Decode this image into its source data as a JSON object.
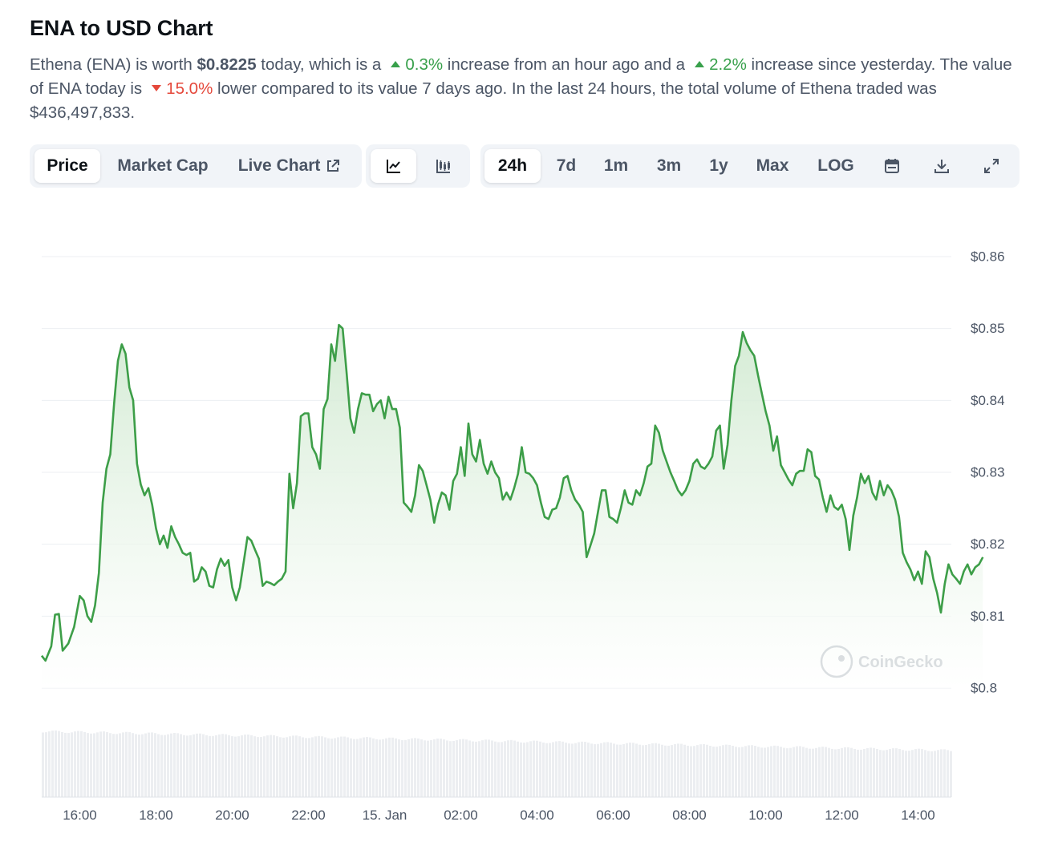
{
  "title": "ENA to USD Chart",
  "description": {
    "part1": "Ethena (ENA) is worth ",
    "price": "$0.8225",
    "part2": " today, which is a",
    "hour_change": "0.3%",
    "part3": " increase from an hour ago and a",
    "day_change": "2.2%",
    "part4": " increase since yesterday. The value of ENA today is",
    "week_change": "15.0%",
    "part5": " lower compared to its value 7 days ago. In the last 24 hours, the total volume of Ethena traded was $436,497,833."
  },
  "toolbar": {
    "tabs": [
      "Price",
      "Market Cap",
      "Live Chart"
    ],
    "active_tab": "Price",
    "chart_types": [
      "line-chart-icon",
      "candlestick-icon"
    ],
    "ranges": [
      "24h",
      "7d",
      "1m",
      "3m",
      "1y",
      "Max",
      "LOG"
    ],
    "active_range": "24h",
    "tools": [
      "calendar-icon",
      "download-icon",
      "fullscreen-icon"
    ]
  },
  "watermark": "CoinGecko",
  "colors": {
    "line": "#3d9e48",
    "fill": "#d9efd9",
    "up": "#38a04b",
    "down": "#e5483b",
    "grid": "#eceff3",
    "axis_text": "#4b5565"
  },
  "chart_data": {
    "type": "line",
    "title": "ENA to USD Chart",
    "xlabel": "",
    "ylabel": "",
    "ylim": [
      0.8,
      0.86
    ],
    "xlim": [
      15.0,
      39.9
    ],
    "grid": true,
    "legend": "none",
    "x_ticks": [
      {
        "x": 16,
        "label": "16:00"
      },
      {
        "x": 18,
        "label": "18:00"
      },
      {
        "x": 20,
        "label": "20:00"
      },
      {
        "x": 22,
        "label": "22:00"
      },
      {
        "x": 24,
        "label": "15. Jan"
      },
      {
        "x": 26,
        "label": "02:00"
      },
      {
        "x": 28,
        "label": "04:00"
      },
      {
        "x": 30,
        "label": "06:00"
      },
      {
        "x": 32,
        "label": "08:00"
      },
      {
        "x": 34,
        "label": "10:00"
      },
      {
        "x": 36,
        "label": "12:00"
      },
      {
        "x": 38,
        "label": "14:00"
      }
    ],
    "y_ticks": [
      {
        "y": 0.86,
        "label": "$0.86"
      },
      {
        "y": 0.85,
        "label": "$0.85"
      },
      {
        "y": 0.84,
        "label": "$0.84"
      },
      {
        "y": 0.83,
        "label": "$0.83"
      },
      {
        "y": 0.82,
        "label": "$0.82"
      },
      {
        "y": 0.81,
        "label": "$0.81"
      },
      {
        "y": 0.8,
        "label": "$0.8"
      }
    ],
    "series": [
      {
        "name": "Price",
        "points": [
          [
            15.0,
            0.8045
          ],
          [
            15.1,
            0.8038
          ],
          [
            15.25,
            0.8058
          ],
          [
            15.35,
            0.8102
          ],
          [
            15.45,
            0.8103
          ],
          [
            15.55,
            0.8052
          ],
          [
            15.7,
            0.8062
          ],
          [
            15.85,
            0.8085
          ],
          [
            16.0,
            0.8128
          ],
          [
            16.1,
            0.8122
          ],
          [
            16.2,
            0.81
          ],
          [
            16.3,
            0.8092
          ],
          [
            16.4,
            0.8115
          ],
          [
            16.5,
            0.816
          ],
          [
            16.6,
            0.8258
          ],
          [
            16.7,
            0.8305
          ],
          [
            16.8,
            0.8325
          ],
          [
            16.9,
            0.8395
          ],
          [
            17.0,
            0.8455
          ],
          [
            17.1,
            0.8478
          ],
          [
            17.2,
            0.8465
          ],
          [
            17.3,
            0.8418
          ],
          [
            17.4,
            0.84
          ],
          [
            17.5,
            0.8312
          ],
          [
            17.6,
            0.8283
          ],
          [
            17.7,
            0.8268
          ],
          [
            17.8,
            0.8278
          ],
          [
            17.9,
            0.8255
          ],
          [
            18.0,
            0.8222
          ],
          [
            18.1,
            0.82
          ],
          [
            18.2,
            0.8212
          ],
          [
            18.3,
            0.8195
          ],
          [
            18.4,
            0.8225
          ],
          [
            18.5,
            0.821
          ],
          [
            18.6,
            0.82
          ],
          [
            18.7,
            0.8188
          ],
          [
            18.8,
            0.8185
          ],
          [
            18.9,
            0.8188
          ],
          [
            19.0,
            0.8148
          ],
          [
            19.1,
            0.8152
          ],
          [
            19.2,
            0.8168
          ],
          [
            19.3,
            0.8162
          ],
          [
            19.4,
            0.8142
          ],
          [
            19.5,
            0.814
          ],
          [
            19.6,
            0.8165
          ],
          [
            19.7,
            0.818
          ],
          [
            19.8,
            0.817
          ],
          [
            19.9,
            0.8178
          ],
          [
            20.0,
            0.814
          ],
          [
            20.1,
            0.8122
          ],
          [
            20.2,
            0.814
          ],
          [
            20.3,
            0.8175
          ],
          [
            20.4,
            0.821
          ],
          [
            20.5,
            0.8205
          ],
          [
            20.6,
            0.8192
          ],
          [
            20.7,
            0.818
          ],
          [
            20.8,
            0.8142
          ],
          [
            20.9,
            0.8148
          ],
          [
            21.0,
            0.8146
          ],
          [
            21.1,
            0.8143
          ],
          [
            21.2,
            0.8148
          ],
          [
            21.3,
            0.8152
          ],
          [
            21.4,
            0.8162
          ],
          [
            21.5,
            0.8298
          ],
          [
            21.6,
            0.825
          ],
          [
            21.7,
            0.8285
          ],
          [
            21.8,
            0.8378
          ],
          [
            21.9,
            0.8382
          ],
          [
            22.0,
            0.8382
          ],
          [
            22.1,
            0.8335
          ],
          [
            22.2,
            0.8325
          ],
          [
            22.3,
            0.8305
          ],
          [
            22.4,
            0.8388
          ],
          [
            22.5,
            0.8402
          ],
          [
            22.6,
            0.8478
          ],
          [
            22.7,
            0.8455
          ],
          [
            22.8,
            0.8505
          ],
          [
            22.9,
            0.85
          ],
          [
            23.0,
            0.844
          ],
          [
            23.1,
            0.8375
          ],
          [
            23.2,
            0.8355
          ],
          [
            23.3,
            0.8388
          ],
          [
            23.4,
            0.841
          ],
          [
            23.5,
            0.8408
          ],
          [
            23.6,
            0.8408
          ],
          [
            23.7,
            0.8385
          ],
          [
            23.8,
            0.8395
          ],
          [
            23.9,
            0.84
          ],
          [
            24.0,
            0.8375
          ],
          [
            24.1,
            0.8405
          ],
          [
            24.2,
            0.8388
          ],
          [
            24.3,
            0.8388
          ],
          [
            24.4,
            0.8362
          ],
          [
            24.5,
            0.8258
          ],
          [
            24.6,
            0.8252
          ],
          [
            24.7,
            0.8245
          ],
          [
            24.8,
            0.8268
          ],
          [
            24.9,
            0.831
          ],
          [
            25.0,
            0.8302
          ],
          [
            25.1,
            0.8282
          ],
          [
            25.2,
            0.8262
          ],
          [
            25.3,
            0.823
          ],
          [
            25.4,
            0.8255
          ],
          [
            25.5,
            0.8272
          ],
          [
            25.6,
            0.8268
          ],
          [
            25.7,
            0.8248
          ],
          [
            25.8,
            0.8288
          ],
          [
            25.9,
            0.8298
          ],
          [
            26.0,
            0.8335
          ],
          [
            26.1,
            0.8295
          ],
          [
            26.2,
            0.8368
          ],
          [
            26.3,
            0.8325
          ],
          [
            26.4,
            0.8315
          ],
          [
            26.5,
            0.8345
          ],
          [
            26.6,
            0.8312
          ],
          [
            26.7,
            0.8298
          ],
          [
            26.8,
            0.8315
          ],
          [
            26.9,
            0.83
          ],
          [
            27.0,
            0.8292
          ],
          [
            27.1,
            0.8262
          ],
          [
            27.2,
            0.8272
          ],
          [
            27.3,
            0.8262
          ],
          [
            27.4,
            0.8278
          ],
          [
            27.5,
            0.8298
          ],
          [
            27.6,
            0.8335
          ],
          [
            27.7,
            0.83
          ],
          [
            27.8,
            0.8298
          ],
          [
            27.9,
            0.8292
          ],
          [
            28.0,
            0.8282
          ],
          [
            28.1,
            0.8258
          ],
          [
            28.2,
            0.8238
          ],
          [
            28.3,
            0.8235
          ],
          [
            28.4,
            0.8248
          ],
          [
            28.5,
            0.825
          ],
          [
            28.6,
            0.8265
          ],
          [
            28.7,
            0.8292
          ],
          [
            28.8,
            0.8295
          ],
          [
            28.9,
            0.8275
          ],
          [
            29.0,
            0.8262
          ],
          [
            29.1,
            0.8255
          ],
          [
            29.2,
            0.8245
          ],
          [
            29.3,
            0.8182
          ],
          [
            29.4,
            0.8198
          ],
          [
            29.5,
            0.8215
          ],
          [
            29.6,
            0.8245
          ],
          [
            29.7,
            0.8275
          ],
          [
            29.8,
            0.8275
          ],
          [
            29.9,
            0.8238
          ],
          [
            30.0,
            0.8235
          ],
          [
            30.1,
            0.823
          ],
          [
            30.2,
            0.825
          ],
          [
            30.3,
            0.8275
          ],
          [
            30.4,
            0.8258
          ],
          [
            30.5,
            0.8255
          ],
          [
            30.6,
            0.8275
          ],
          [
            30.7,
            0.8268
          ],
          [
            30.8,
            0.8285
          ],
          [
            30.9,
            0.8308
          ],
          [
            31.0,
            0.8312
          ],
          [
            31.1,
            0.8365
          ],
          [
            31.2,
            0.8355
          ],
          [
            31.3,
            0.833
          ],
          [
            31.4,
            0.8315
          ],
          [
            31.5,
            0.83
          ],
          [
            31.6,
            0.8288
          ],
          [
            31.7,
            0.8275
          ],
          [
            31.8,
            0.8268
          ],
          [
            31.9,
            0.8275
          ],
          [
            32.0,
            0.8288
          ],
          [
            32.1,
            0.8312
          ],
          [
            32.2,
            0.8318
          ],
          [
            32.3,
            0.8308
          ],
          [
            32.4,
            0.8305
          ],
          [
            32.5,
            0.8312
          ],
          [
            32.6,
            0.8322
          ],
          [
            32.7,
            0.8358
          ],
          [
            32.8,
            0.8365
          ],
          [
            32.9,
            0.8305
          ],
          [
            33.0,
            0.8338
          ],
          [
            33.1,
            0.84
          ],
          [
            33.2,
            0.8448
          ],
          [
            33.3,
            0.8462
          ],
          [
            33.4,
            0.8495
          ],
          [
            33.5,
            0.848
          ],
          [
            33.6,
            0.847
          ],
          [
            33.7,
            0.8462
          ],
          [
            33.8,
            0.8435
          ],
          [
            33.9,
            0.841
          ],
          [
            34.0,
            0.8385
          ],
          [
            34.1,
            0.8365
          ],
          [
            34.2,
            0.833
          ],
          [
            34.3,
            0.835
          ],
          [
            34.4,
            0.831
          ],
          [
            34.5,
            0.83
          ],
          [
            34.6,
            0.829
          ],
          [
            34.7,
            0.8282
          ],
          [
            34.8,
            0.8298
          ],
          [
            34.9,
            0.8302
          ],
          [
            35.0,
            0.8302
          ],
          [
            35.1,
            0.8332
          ],
          [
            35.2,
            0.8328
          ],
          [
            35.3,
            0.8295
          ],
          [
            35.4,
            0.829
          ],
          [
            35.5,
            0.8265
          ],
          [
            35.6,
            0.8245
          ],
          [
            35.7,
            0.8268
          ],
          [
            35.8,
            0.8252
          ],
          [
            35.9,
            0.8248
          ],
          [
            36.0,
            0.8255
          ],
          [
            36.1,
            0.8235
          ],
          [
            36.2,
            0.8192
          ],
          [
            36.3,
            0.824
          ],
          [
            36.4,
            0.8265
          ],
          [
            36.5,
            0.8298
          ],
          [
            36.6,
            0.8285
          ],
          [
            36.7,
            0.8295
          ],
          [
            36.8,
            0.8272
          ],
          [
            36.9,
            0.8262
          ],
          [
            37.0,
            0.8288
          ],
          [
            37.1,
            0.8268
          ],
          [
            37.2,
            0.8282
          ],
          [
            37.3,
            0.8275
          ],
          [
            37.4,
            0.8262
          ],
          [
            37.5,
            0.8238
          ],
          [
            37.6,
            0.8188
          ],
          [
            37.7,
            0.8175
          ],
          [
            37.8,
            0.8165
          ],
          [
            37.9,
            0.815
          ],
          [
            38.0,
            0.8162
          ],
          [
            38.1,
            0.8145
          ],
          [
            38.2,
            0.819
          ],
          [
            38.3,
            0.8182
          ],
          [
            38.4,
            0.8152
          ],
          [
            38.5,
            0.8132
          ],
          [
            38.6,
            0.8105
          ],
          [
            38.7,
            0.8145
          ],
          [
            38.8,
            0.8172
          ],
          [
            38.9,
            0.8158
          ],
          [
            39.0,
            0.8152
          ],
          [
            39.1,
            0.8145
          ],
          [
            39.2,
            0.8162
          ],
          [
            39.3,
            0.8172
          ],
          [
            39.4,
            0.8158
          ],
          [
            39.5,
            0.8168
          ],
          [
            39.6,
            0.8172
          ],
          [
            39.7,
            0.8182
          ]
        ]
      }
    ]
  }
}
